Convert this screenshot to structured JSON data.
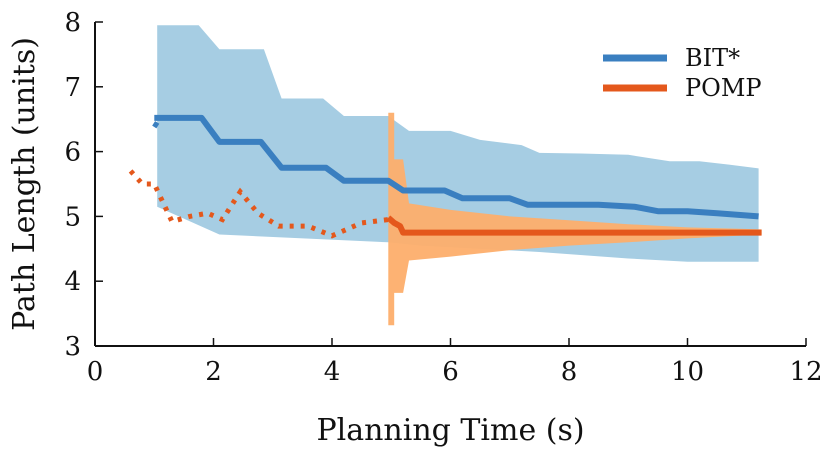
{
  "chart_data": {
    "type": "line",
    "title": "",
    "xlabel": "Planning Time (s)",
    "ylabel": "Path Length (units)",
    "xlim": [
      0,
      12
    ],
    "ylim": [
      3,
      8
    ],
    "xticks": [
      0,
      2,
      4,
      6,
      8,
      10,
      12
    ],
    "yticks": [
      3,
      4,
      5,
      6,
      7,
      8
    ],
    "xtick_labels": [
      "0",
      "2",
      "4",
      "6",
      "8",
      "10",
      "12"
    ],
    "ytick_labels": [
      "3",
      "4",
      "5",
      "6",
      "7",
      "8"
    ],
    "grid": false,
    "legend_position": "top-right",
    "series": [
      {
        "name": "BIT*",
        "color": "#3a7fc0",
        "band_color": "#a6cde3",
        "initial_segment": {
          "x": [
            1.0,
            1.05
          ],
          "y": [
            6.38,
            6.45
          ]
        },
        "median": {
          "x": [
            1.0,
            1.8,
            2.1,
            2.8,
            3.15,
            3.9,
            4.2,
            4.95,
            5.2,
            5.9,
            6.2,
            7.0,
            7.3,
            8.5,
            9.1,
            9.5,
            10.0,
            10.5,
            11.2
          ],
          "y": [
            6.52,
            6.52,
            6.15,
            6.15,
            5.75,
            5.75,
            5.55,
            5.55,
            5.4,
            5.4,
            5.28,
            5.28,
            5.18,
            5.18,
            5.15,
            5.08,
            5.08,
            5.05,
            5.0
          ]
        },
        "band_upper": {
          "x": [
            1.05,
            1.75,
            2.1,
            2.85,
            3.15,
            3.85,
            4.2,
            4.95,
            5.3,
            6.0,
            6.5,
            7.2,
            7.5,
            8.2,
            9.0,
            9.7,
            10.2,
            10.7,
            11.2
          ],
          "y": [
            7.95,
            7.95,
            7.58,
            7.58,
            6.82,
            6.82,
            6.55,
            6.55,
            6.32,
            6.32,
            6.18,
            6.1,
            5.98,
            5.97,
            5.95,
            5.85,
            5.85,
            5.8,
            5.74
          ]
        },
        "band_lower": {
          "x": [
            1.05,
            2.1,
            4.95,
            5.5,
            7.5,
            9.0,
            10.0,
            11.2
          ],
          "y": [
            5.15,
            4.72,
            4.6,
            4.55,
            4.45,
            4.35,
            4.3,
            4.3
          ]
        }
      },
      {
        "name": "POMP",
        "color": "#e4581c",
        "band_color": "#fdae6b",
        "dotted_segment": {
          "x": [
            0.6,
            0.8,
            1.0,
            1.3,
            1.6,
            1.9,
            2.15,
            2.45,
            2.75,
            3.1,
            3.6,
            4.0,
            4.5,
            4.95
          ],
          "y": [
            5.7,
            5.5,
            5.5,
            4.92,
            5.0,
            5.05,
            4.95,
            5.38,
            5.05,
            4.85,
            4.85,
            4.7,
            4.9,
            4.95
          ]
        },
        "median": {
          "x": [
            4.95,
            5.05,
            5.15,
            5.2,
            11.25
          ],
          "y": [
            4.98,
            4.9,
            4.85,
            4.75,
            4.75
          ]
        },
        "band_upper": {
          "x": [
            4.95,
            5.05,
            5.05,
            5.2,
            5.3,
            6.0,
            7.0,
            8.0,
            9.0,
            10.0,
            11.25
          ],
          "y": [
            6.6,
            6.6,
            5.88,
            5.88,
            5.2,
            5.1,
            5.0,
            4.94,
            4.88,
            4.83,
            4.8
          ]
        },
        "band_lower": {
          "x": [
            4.95,
            5.05,
            5.05,
            5.2,
            5.3,
            6.0,
            7.0,
            8.0,
            9.0,
            10.0,
            11.25
          ],
          "y": [
            3.32,
            3.32,
            3.82,
            3.82,
            4.32,
            4.38,
            4.48,
            4.55,
            4.6,
            4.66,
            4.72
          ]
        }
      }
    ]
  }
}
